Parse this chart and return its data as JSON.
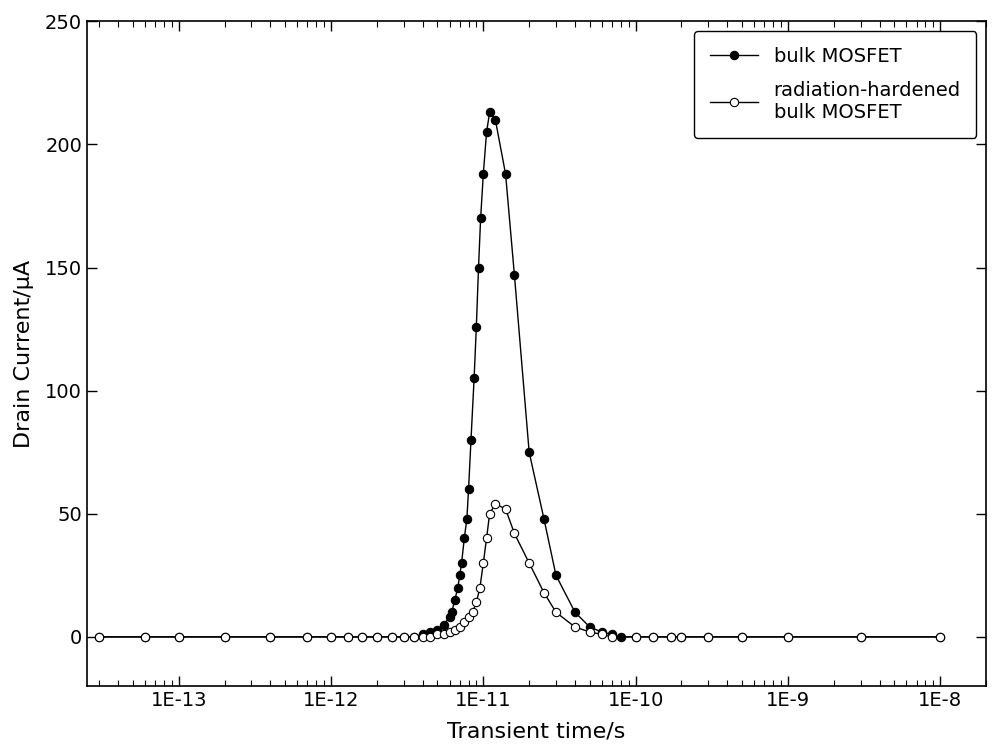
{
  "title": "",
  "xlabel": "Transient time/s",
  "ylabel": "Drain Current/μA",
  "ylim": [
    -20,
    250
  ],
  "yticks": [
    0,
    50,
    100,
    150,
    200,
    250
  ],
  "xtick_labels": [
    "1E-13",
    "1E-12",
    "1E-11",
    "1E-10",
    "1E-9",
    "1E-8"
  ],
  "xtick_values": [
    1e-13,
    1e-12,
    1e-11,
    1e-10,
    1e-09,
    1e-08
  ],
  "bulk_x": [
    3e-14,
    6e-14,
    1e-13,
    2e-13,
    4e-13,
    7e-13,
    1e-12,
    1.3e-12,
    1.6e-12,
    2e-12,
    2.5e-12,
    3e-12,
    3.5e-12,
    4e-12,
    4.5e-12,
    5e-12,
    5.5e-12,
    6e-12,
    6.2e-12,
    6.5e-12,
    6.8e-12,
    7e-12,
    7.2e-12,
    7.5e-12,
    7.8e-12,
    8e-12,
    8.3e-12,
    8.7e-12,
    9e-12,
    9.3e-12,
    9.6e-12,
    1e-11,
    1.05e-11,
    1.1e-11,
    1.2e-11,
    1.4e-11,
    1.6e-11,
    2e-11,
    2.5e-11,
    3e-11,
    4e-11,
    5e-11,
    6e-11,
    7e-11,
    8e-11,
    1e-10,
    1.3e-10,
    1.7e-10,
    2e-10,
    3e-10,
    5e-10,
    1e-09,
    3e-09,
    1e-08
  ],
  "bulk_y": [
    0,
    0,
    0,
    0,
    0,
    0,
    0,
    0,
    0,
    0,
    0,
    0,
    0,
    1,
    2,
    3,
    5,
    8,
    10,
    15,
    20,
    25,
    30,
    40,
    48,
    60,
    80,
    105,
    126,
    150,
    170,
    188,
    205,
    213,
    210,
    188,
    147,
    75,
    48,
    25,
    10,
    4,
    2,
    1,
    0,
    0,
    0,
    0,
    0,
    0,
    0,
    0,
    0,
    0
  ],
  "rad_x": [
    3e-14,
    6e-14,
    1e-13,
    2e-13,
    4e-13,
    7e-13,
    1e-12,
    1.3e-12,
    1.6e-12,
    2e-12,
    2.5e-12,
    3e-12,
    3.5e-12,
    4e-12,
    4.5e-12,
    5e-12,
    5.5e-12,
    6e-12,
    6.5e-12,
    7e-12,
    7.5e-12,
    8e-12,
    8.5e-12,
    9e-12,
    9.5e-12,
    1e-11,
    1.05e-11,
    1.1e-11,
    1.2e-11,
    1.4e-11,
    1.6e-11,
    2e-11,
    2.5e-11,
    3e-11,
    4e-11,
    5e-11,
    6e-11,
    7e-11,
    1e-10,
    1.3e-10,
    1.7e-10,
    2e-10,
    3e-10,
    5e-10,
    1e-09,
    3e-09,
    1e-08
  ],
  "rad_y": [
    0,
    0,
    0,
    0,
    0,
    0,
    0,
    0,
    0,
    0,
    0,
    0,
    0,
    0,
    0,
    1,
    1,
    2,
    3,
    4,
    6,
    8,
    10,
    14,
    20,
    30,
    40,
    50,
    54,
    52,
    42,
    30,
    18,
    10,
    4,
    2,
    1,
    0,
    0,
    0,
    0,
    0,
    0,
    0,
    0,
    0,
    0
  ],
  "bg_color": "#ffffff",
  "line_color": "#000000",
  "legend_labels": [
    "bulk MOSFET",
    "radiation-hardened\nbulk MOSFET"
  ]
}
